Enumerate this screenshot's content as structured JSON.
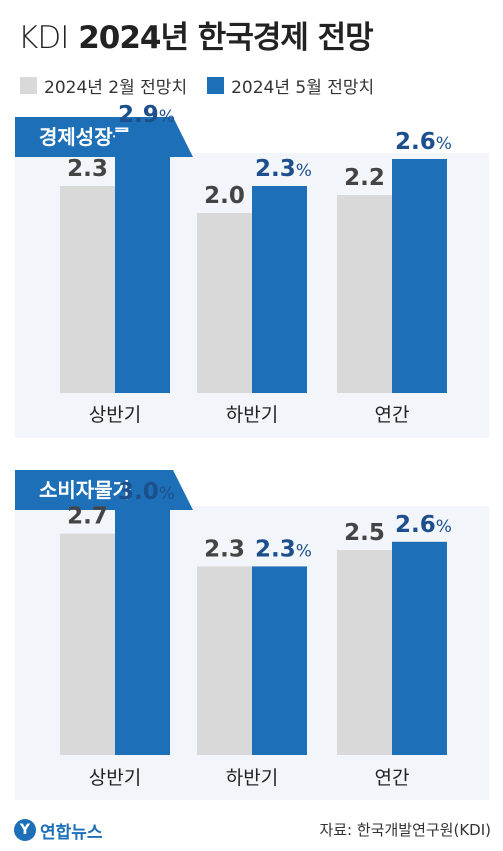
{
  "header": {
    "title_light": "KDI",
    "title_bold": "2024년 한국경제 전망"
  },
  "legend": {
    "items": [
      {
        "label": "2024년 2월 전망치",
        "color": "#d9d9d9"
      },
      {
        "label": "2024년 5월 전망치",
        "color": "#1d70b8"
      }
    ]
  },
  "colors": {
    "feb": "#d9d9d9",
    "may": "#1d70b8",
    "feb_text": "#444444",
    "may_text": "#1d4f8c",
    "panel_bg": "#f2f5fa"
  },
  "chart_data": [
    {
      "type": "bar",
      "title": "경제성장률",
      "categories": [
        "상반기",
        "하반기",
        "연간"
      ],
      "series": [
        {
          "name": "2024년 2월 전망치",
          "values": [
            2.3,
            2.0,
            2.2
          ]
        },
        {
          "name": "2024년 5월 전망치",
          "values": [
            2.9,
            2.3,
            2.6
          ]
        }
      ],
      "unit": "%",
      "grid": false
    },
    {
      "type": "bar",
      "title": "소비자물가",
      "categories": [
        "상반기",
        "하반기",
        "연간"
      ],
      "series": [
        {
          "name": "2024년 2월 전망치",
          "values": [
            2.7,
            2.3,
            2.5
          ]
        },
        {
          "name": "2024년 5월 전망치",
          "values": [
            3.0,
            2.3,
            2.6
          ]
        }
      ],
      "unit": "%",
      "grid": false
    }
  ],
  "footer": {
    "logo_mark": "Y",
    "logo_text": "연합뉴스",
    "source": "자료: 한국개발연구원(KDI)"
  }
}
